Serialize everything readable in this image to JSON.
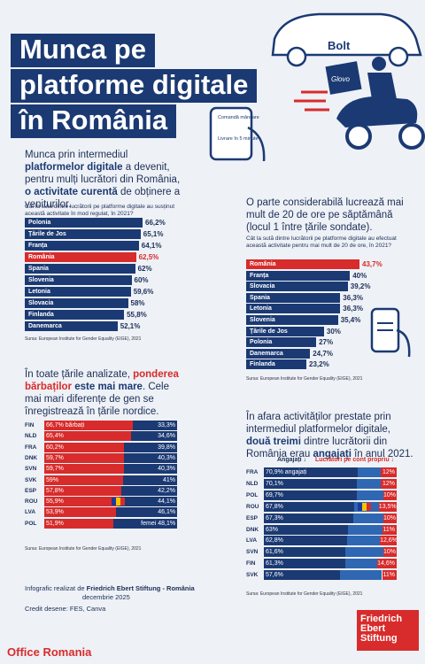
{
  "title": {
    "line1": "Munca pe",
    "line2": "platforme digitale",
    "line3": "în România"
  },
  "hero": {
    "brand1": "Bolt",
    "brand2": "Glovo",
    "phone_text": "Comandă mâncare",
    "phone_text2": "Livrare în 5 minute"
  },
  "s1": {
    "text_a": "Munca prin intermediul ",
    "text_b": "platformelor digitale",
    "text_c": " a devenit, pentru mulți lucrători din România, ",
    "text_d": "o activitate curentă",
    "text_e": " de obținere a veniturilor.",
    "question": "Cât la sută dintre lucrătorii pe platforme digitale au susținut această activitate în mod regulat, în 2021?",
    "source": "Sursa: European Institute for Gender Equality (EIGE), 2021"
  },
  "s2": {
    "text": "O parte considerabilă lucrează mai mult de 20 de ore pe săptămână (locul 1 între țările sondate).",
    "question": "Cât la sută dintre lucrătorii pe platforme digitale au efectuat această activitate pentru mai mult de 20 de ore, în 2021?",
    "source": "Sursa: European Institute for Gender Equality (EIGE), 2021"
  },
  "s3": {
    "text_a": "În toate țările analizate, ",
    "text_b": "ponderea bărbaților",
    "text_c": " este mai mare",
    "text_d": ". Cele mai mari diferențe de gen se înregistrează în țările nordice.",
    "male_label": "bărbați",
    "female_label": "femei",
    "source": "Sursa: European Institute for Gender Equality (EIGE), 2021"
  },
  "s4": {
    "text_a": "În afara activităților prestate prin intermediul platformelor digitale, ",
    "text_b": "două treimi",
    "text_c": " dintre lucrătorii din România erau ",
    "text_d": "angajați",
    "text_e": " în anul 2021.",
    "col1": "Angajați ↓",
    "col2": "Lucrători pe cont propriu ↓",
    "emp_label": "angajați",
    "source": "Sursa: European Institute for Gender Equality (EIGE), 2021"
  },
  "footer": {
    "line1a": "Infografic realizat de ",
    "line1b": "Friedrich Ebert Stiftung - România",
    "line2": "decembrie 2025",
    "line3": "Credit desene: FES, Canva",
    "office": "Office Romania",
    "logo1": "Friedrich",
    "logo2": "Ebert",
    "logo3": "Stiftung"
  },
  "colors": {
    "navy": "#1b3a73",
    "red": "#d82b2b",
    "lightblue": "#2f67b2",
    "bg": "#eef1f6"
  },
  "chart_data": [
    {
      "type": "bar",
      "highlight": "România",
      "categories": [
        "Polonia",
        "Țările de Jos",
        "Franța",
        "România",
        "Spania",
        "Slovenia",
        "Letonia",
        "Slovacia",
        "Finlanda",
        "Danemarca"
      ],
      "values": [
        66.2,
        65.1,
        64.1,
        62.5,
        62,
        60,
        59.6,
        58,
        55.8,
        52.1
      ],
      "labels": [
        "66,2%",
        "65,1%",
        "64,1%",
        "62,5%",
        "62%",
        "60%",
        "59,6%",
        "58%",
        "55,8%",
        "52,1%"
      ]
    },
    {
      "type": "bar",
      "highlight": "România",
      "categories": [
        "România",
        "Franța",
        "Slovacia",
        "Spania",
        "Letonia",
        "Slovenia",
        "Țările de Jos",
        "Polonia",
        "Danemarca",
        "Finlanda"
      ],
      "values": [
        43.7,
        40,
        39.2,
        36.3,
        36.3,
        35.4,
        30,
        27,
        24.7,
        23.2
      ],
      "labels": [
        "43,7%",
        "40%",
        "39,2%",
        "36,3%",
        "36,3%",
        "35,4%",
        "30%",
        "27%",
        "24,7%",
        "23,2%"
      ]
    },
    {
      "type": "bar",
      "stacked": true,
      "categories": [
        "FIN",
        "NLD",
        "FRA",
        "DNK",
        "SVN",
        "SVK",
        "ESP",
        "ROU",
        "LVA",
        "POL"
      ],
      "series": [
        {
          "name": "bărbați",
          "values": [
            66.7,
            65.4,
            60.2,
            59.7,
            59.7,
            59,
            57.8,
            55.9,
            53.9,
            51.9
          ],
          "labels": [
            "66,7%",
            "65,4%",
            "60,2%",
            "59,7%",
            "59,7%",
            "59%",
            "57,8%",
            "55,9%",
            "53,9%",
            "51,9%"
          ]
        },
        {
          "name": "femei",
          "values": [
            33.3,
            34.6,
            39.8,
            40.3,
            40.3,
            41,
            42.2,
            44.1,
            46.1,
            48.1
          ],
          "labels": [
            "33,3%",
            "34,6%",
            "39,8%",
            "40,3%",
            "40,3%",
            "41%",
            "42,2%",
            "44,1%",
            "46,1%",
            "48,1%"
          ]
        }
      ]
    },
    {
      "type": "bar",
      "stacked": true,
      "categories": [
        "FRA",
        "NLD",
        "POL",
        "ROU",
        "ESP",
        "DNK",
        "LVA",
        "SVN",
        "FIN",
        "SVK"
      ],
      "series": [
        {
          "name": "Angajați",
          "values": [
            70.9,
            70.1,
            69.7,
            67.8,
            67.3,
            63,
            62.8,
            61.6,
            61.3,
            57.6
          ],
          "labels": [
            "70,9%",
            "70,1%",
            "69,7%",
            "67,8%",
            "67,3%",
            "63%",
            "62,8%",
            "61,6%",
            "61,3%",
            "57,6%"
          ]
        },
        {
          "name": "Lucrători pe cont propriu",
          "values": [
            12,
            12,
            10,
            13.5,
            10,
            11,
            12.6,
            10,
            14.6,
            11
          ],
          "labels": [
            "12%",
            "12%",
            "10%",
            "13,5%",
            "10%",
            "11%",
            "12,6%",
            "10%",
            "14,6%",
            "11%"
          ]
        }
      ]
    }
  ]
}
